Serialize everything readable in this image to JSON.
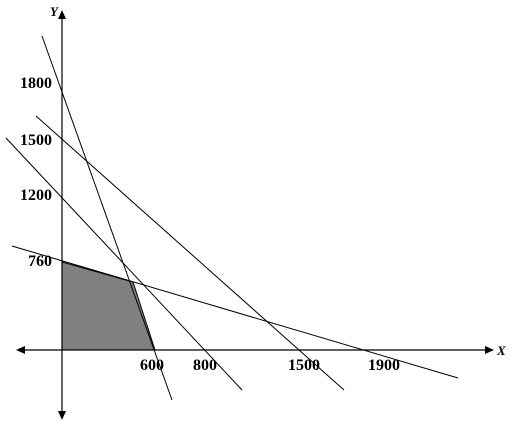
{
  "axes": {
    "x_label": "X",
    "y_label": "Y"
  },
  "x_ticks": [
    "600",
    "800",
    "1500",
    "1900"
  ],
  "y_ticks": [
    "1800",
    "1500",
    "1200",
    "760"
  ],
  "region_color": "#808080",
  "line_color": "#000000"
}
